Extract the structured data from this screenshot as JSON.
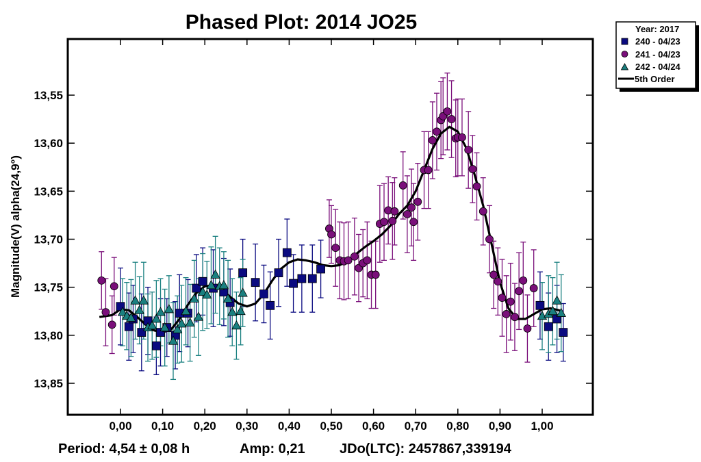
{
  "chart_data": {
    "type": "scatter",
    "title": "Phased Plot: 2014 JO25",
    "xlabel": "",
    "ylabel": "Magnitude(V) alpha(24,9°)",
    "xlim": [
      -0.125,
      1.12
    ],
    "ylim": [
      13.495,
      13.882
    ],
    "y_inverted": true,
    "x_ticks": [
      "0,00",
      "0,10",
      "0,20",
      "0,30",
      "0,40",
      "0,50",
      "0,60",
      "0,70",
      "0,80",
      "0,90",
      "1,00"
    ],
    "x_tick_values": [
      0,
      0.1,
      0.2,
      0.3,
      0.4,
      0.5,
      0.6,
      0.7,
      0.8,
      0.9,
      1.0
    ],
    "y_ticks": [
      "13,55",
      "13,60",
      "13,65",
      "13,70",
      "13,75",
      "13,80",
      "13,85"
    ],
    "y_tick_values": [
      13.55,
      13.6,
      13.65,
      13.7,
      13.75,
      13.8,
      13.85
    ],
    "grid": false,
    "legend": {
      "position": "top-right",
      "title": "Year: 2017",
      "entries": [
        "240 - 04/23",
        "241 - 04/23",
        "242 - 04/24",
        "5th Order"
      ]
    },
    "footer": {
      "period": "Period: 4,54 ± 0,08 h",
      "amp": "Amp: 0,21",
      "jdo": "JDo(LTC): 2457867,339194"
    },
    "series": [
      {
        "name": "240 - 04/23",
        "marker": "square",
        "color": "#0a0a80",
        "points": [
          [
            0.0,
            13.77,
            0.04
          ],
          [
            0.02,
            13.791,
            0.035
          ],
          [
            0.03,
            13.783,
            0.035
          ],
          [
            0.05,
            13.797,
            0.04
          ],
          [
            0.065,
            13.785,
            0.035
          ],
          [
            0.085,
            13.811,
            0.03
          ],
          [
            0.095,
            13.797,
            0.035
          ],
          [
            0.11,
            13.792,
            0.03
          ],
          [
            0.13,
            13.8,
            0.035
          ],
          [
            0.14,
            13.777,
            0.04
          ],
          [
            0.16,
            13.777,
            0.035
          ],
          [
            0.18,
            13.751,
            0.035
          ],
          [
            0.195,
            13.744,
            0.035
          ],
          [
            0.22,
            13.751,
            0.04
          ],
          [
            0.245,
            13.755,
            0.035
          ],
          [
            0.26,
            13.766,
            0.035
          ],
          [
            0.29,
            13.735,
            0.035
          ],
          [
            0.32,
            13.745,
            0.04
          ],
          [
            0.34,
            13.757,
            0.03
          ],
          [
            0.355,
            13.769,
            0.035
          ],
          [
            0.375,
            13.735,
            0.035
          ],
          [
            0.395,
            13.714,
            0.035
          ],
          [
            0.41,
            13.746,
            0.03
          ],
          [
            0.43,
            13.741,
            0.035
          ],
          [
            0.455,
            13.741,
            0.035
          ],
          [
            0.475,
            13.731,
            0.03
          ],
          [
            0.995,
            13.769,
            0.035
          ],
          [
            1.015,
            13.791,
            0.035
          ],
          [
            1.035,
            13.783,
            0.035
          ],
          [
            1.05,
            13.797,
            0.03
          ]
        ]
      },
      {
        "name": "241 - 04/23",
        "marker": "circle",
        "color": "#7a0f7a",
        "points": [
          [
            -0.045,
            13.743,
            0.03
          ],
          [
            -0.035,
            13.776,
            0.035
          ],
          [
            -0.02,
            13.789,
            0.03
          ],
          [
            -0.015,
            13.749,
            0.03
          ],
          [
            0.495,
            13.689,
            0.03
          ],
          [
            0.5,
            13.695,
            0.03
          ],
          [
            0.51,
            13.709,
            0.04
          ],
          [
            0.52,
            13.722,
            0.04
          ],
          [
            0.53,
            13.723,
            0.04
          ],
          [
            0.54,
            13.722,
            0.04
          ],
          [
            0.555,
            13.718,
            0.04
          ],
          [
            0.565,
            13.73,
            0.035
          ],
          [
            0.575,
            13.725,
            0.035
          ],
          [
            0.585,
            13.722,
            0.04
          ],
          [
            0.595,
            13.737,
            0.035
          ],
          [
            0.605,
            13.737,
            0.035
          ],
          [
            0.615,
            13.684,
            0.04
          ],
          [
            0.625,
            13.682,
            0.04
          ],
          [
            0.635,
            13.67,
            0.035
          ],
          [
            0.645,
            13.681,
            0.04
          ],
          [
            0.65,
            13.671,
            0.035
          ],
          [
            0.67,
            13.644,
            0.035
          ],
          [
            0.68,
            13.674,
            0.04
          ],
          [
            0.69,
            13.667,
            0.04
          ],
          [
            0.695,
            13.682,
            0.04
          ],
          [
            0.705,
            13.661,
            0.04
          ],
          [
            0.72,
            13.628,
            0.04
          ],
          [
            0.73,
            13.628,
            0.04
          ],
          [
            0.74,
            13.597,
            0.04
          ],
          [
            0.75,
            13.588,
            0.04
          ],
          [
            0.76,
            13.576,
            0.04
          ],
          [
            0.765,
            13.572,
            0.04
          ],
          [
            0.775,
            13.567,
            0.04
          ],
          [
            0.785,
            13.575,
            0.04
          ],
          [
            0.795,
            13.595,
            0.04
          ],
          [
            0.8,
            13.594,
            0.04
          ],
          [
            0.81,
            13.594,
            0.04
          ],
          [
            0.825,
            13.607,
            0.04
          ],
          [
            0.835,
            13.627,
            0.035
          ],
          [
            0.845,
            13.645,
            0.035
          ],
          [
            0.86,
            13.671,
            0.035
          ],
          [
            0.875,
            13.7,
            0.035
          ],
          [
            0.885,
            13.737,
            0.035
          ],
          [
            0.895,
            13.744,
            0.035
          ],
          [
            0.905,
            13.761,
            0.04
          ],
          [
            0.915,
            13.778,
            0.04
          ],
          [
            0.925,
            13.765,
            0.04
          ],
          [
            0.935,
            13.781,
            0.035
          ],
          [
            0.945,
            13.754,
            0.04
          ],
          [
            0.955,
            13.743,
            0.04
          ],
          [
            0.965,
            13.793,
            0.035
          ],
          [
            0.98,
            13.751,
            0.04
          ]
        ]
      },
      {
        "name": "242 - 04/24",
        "marker": "triangle",
        "color": "#1a8080",
        "points": [
          [
            0.005,
            13.776,
            0.035
          ],
          [
            0.015,
            13.78,
            0.035
          ],
          [
            0.025,
            13.782,
            0.04
          ],
          [
            0.035,
            13.764,
            0.04
          ],
          [
            0.045,
            13.774,
            0.035
          ],
          [
            0.055,
            13.764,
            0.04
          ],
          [
            0.065,
            13.792,
            0.035
          ],
          [
            0.075,
            13.79,
            0.035
          ],
          [
            0.085,
            13.783,
            0.04
          ],
          [
            0.095,
            13.776,
            0.035
          ],
          [
            0.105,
            13.792,
            0.04
          ],
          [
            0.115,
            13.773,
            0.035
          ],
          [
            0.125,
            13.806,
            0.04
          ],
          [
            0.135,
            13.794,
            0.035
          ],
          [
            0.145,
            13.788,
            0.04
          ],
          [
            0.155,
            13.775,
            0.035
          ],
          [
            0.165,
            13.787,
            0.04
          ],
          [
            0.175,
            13.762,
            0.04
          ],
          [
            0.185,
            13.781,
            0.04
          ],
          [
            0.195,
            13.755,
            0.04
          ],
          [
            0.205,
            13.758,
            0.035
          ],
          [
            0.215,
            13.748,
            0.04
          ],
          [
            0.225,
            13.737,
            0.04
          ],
          [
            0.235,
            13.749,
            0.04
          ],
          [
            0.245,
            13.748,
            0.035
          ],
          [
            0.255,
            13.762,
            0.04
          ],
          [
            0.265,
            13.776,
            0.035
          ],
          [
            0.275,
            13.79,
            0.035
          ],
          [
            0.285,
            13.775,
            0.035
          ],
          [
            0.29,
            13.756,
            0.035
          ],
          [
            1.0,
            13.78,
            0.035
          ],
          [
            1.015,
            13.778,
            0.04
          ],
          [
            1.025,
            13.775,
            0.035
          ],
          [
            1.035,
            13.764,
            0.04
          ],
          [
            1.045,
            13.777,
            0.04
          ]
        ]
      }
    ],
    "fit_curve": {
      "name": "5th Order",
      "color": "#000000",
      "points": [
        [
          -0.05,
          13.781
        ],
        [
          -0.02,
          13.779
        ],
        [
          0.0,
          13.773
        ],
        [
          0.02,
          13.774
        ],
        [
          0.04,
          13.781
        ],
        [
          0.06,
          13.789
        ],
        [
          0.08,
          13.795
        ],
        [
          0.1,
          13.797
        ],
        [
          0.12,
          13.794
        ],
        [
          0.14,
          13.783
        ],
        [
          0.16,
          13.768
        ],
        [
          0.18,
          13.756
        ],
        [
          0.2,
          13.749
        ],
        [
          0.22,
          13.748
        ],
        [
          0.24,
          13.752
        ],
        [
          0.26,
          13.76
        ],
        [
          0.28,
          13.767
        ],
        [
          0.3,
          13.77
        ],
        [
          0.32,
          13.767
        ],
        [
          0.34,
          13.757
        ],
        [
          0.36,
          13.743
        ],
        [
          0.38,
          13.731
        ],
        [
          0.4,
          13.724
        ],
        [
          0.42,
          13.721
        ],
        [
          0.44,
          13.722
        ],
        [
          0.46,
          13.724
        ],
        [
          0.48,
          13.727
        ],
        [
          0.5,
          13.728
        ],
        [
          0.52,
          13.727
        ],
        [
          0.54,
          13.722
        ],
        [
          0.56,
          13.715
        ],
        [
          0.58,
          13.708
        ],
        [
          0.6,
          13.702
        ],
        [
          0.62,
          13.695
        ],
        [
          0.64,
          13.686
        ],
        [
          0.66,
          13.674
        ],
        [
          0.68,
          13.665
        ],
        [
          0.7,
          13.65
        ],
        [
          0.72,
          13.628
        ],
        [
          0.74,
          13.606
        ],
        [
          0.76,
          13.59
        ],
        [
          0.78,
          13.583
        ],
        [
          0.8,
          13.588
        ],
        [
          0.82,
          13.605
        ],
        [
          0.84,
          13.633
        ],
        [
          0.86,
          13.665
        ],
        [
          0.88,
          13.705
        ],
        [
          0.9,
          13.745
        ],
        [
          0.92,
          13.772
        ],
        [
          0.94,
          13.783
        ],
        [
          0.96,
          13.783
        ],
        [
          0.98,
          13.778
        ],
        [
          1.0,
          13.773
        ],
        [
          1.02,
          13.772
        ],
        [
          1.04,
          13.774
        ],
        [
          1.05,
          13.777
        ]
      ]
    }
  }
}
